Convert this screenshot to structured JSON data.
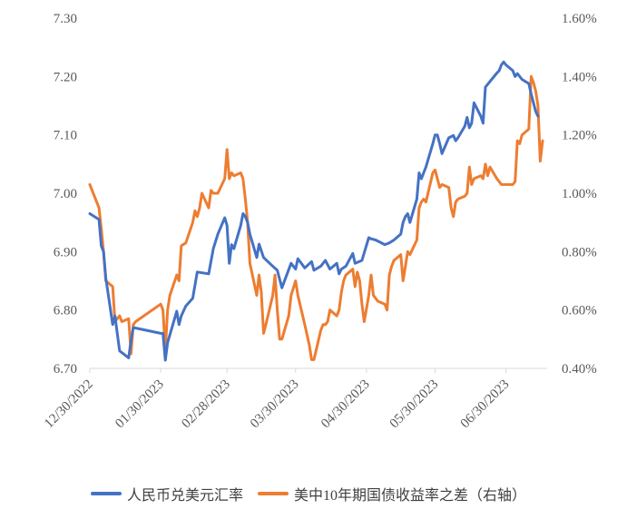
{
  "chart_data": {
    "type": "line",
    "title": "",
    "x_ticks": [
      "12/30/2022",
      "01/30/2023",
      "02/28/2023",
      "03/30/2023",
      "04/30/2023",
      "05/30/2023",
      "06/30/2023"
    ],
    "x_range": [
      "2022-12-30",
      "2023-07-18"
    ],
    "y_left": {
      "range": [
        6.7,
        7.3
      ],
      "ticks": [
        "6.70",
        "6.80",
        "6.90",
        "7.00",
        "7.10",
        "7.20",
        "7.30"
      ]
    },
    "y_right": {
      "range": [
        0.4,
        1.6
      ],
      "ticks": [
        "0.40%",
        "0.60%",
        "0.80%",
        "1.00%",
        "1.20%",
        "1.40%",
        "1.60%"
      ]
    },
    "grid": false,
    "legend_position": "bottom",
    "series": [
      {
        "name": "人民币兑美元汇率",
        "axis": "left",
        "color": "#4472C4",
        "points": [
          [
            "2022-12-30",
            6.965
          ],
          [
            "2023-01-03",
            6.955
          ],
          [
            "2023-01-04",
            6.91
          ],
          [
            "2023-01-05",
            6.9
          ],
          [
            "2023-01-06",
            6.855
          ],
          [
            "2023-01-09",
            6.775
          ],
          [
            "2023-01-10",
            6.79
          ],
          [
            "2023-01-12",
            6.73
          ],
          [
            "2023-01-16",
            6.718
          ],
          [
            "2023-01-17",
            6.748
          ],
          [
            "2023-01-18",
            6.77
          ],
          [
            "2023-01-30",
            6.76
          ],
          [
            "2023-01-31",
            6.76
          ],
          [
            "2023-02-01",
            6.714
          ],
          [
            "2023-02-02",
            6.744
          ],
          [
            "2023-02-06",
            6.798
          ],
          [
            "2023-02-07",
            6.775
          ],
          [
            "2023-02-08",
            6.79
          ],
          [
            "2023-02-10",
            6.807
          ],
          [
            "2023-02-13",
            6.82
          ],
          [
            "2023-02-15",
            6.865
          ],
          [
            "2023-02-20",
            6.862
          ],
          [
            "2023-02-22",
            6.905
          ],
          [
            "2023-02-24",
            6.93
          ],
          [
            "2023-02-27",
            6.958
          ],
          [
            "2023-02-28",
            6.945
          ],
          [
            "2023-03-01",
            6.88
          ],
          [
            "2023-03-02",
            6.912
          ],
          [
            "2023-03-03",
            6.905
          ],
          [
            "2023-03-06",
            6.945
          ],
          [
            "2023-03-07",
            6.965
          ],
          [
            "2023-03-08",
            6.96
          ],
          [
            "2023-03-09",
            6.95
          ],
          [
            "2023-03-10",
            6.93
          ],
          [
            "2023-03-13",
            6.89
          ],
          [
            "2023-03-14",
            6.913
          ],
          [
            "2023-03-16",
            6.89
          ],
          [
            "2023-03-20",
            6.875
          ],
          [
            "2023-03-22",
            6.868
          ],
          [
            "2023-03-24",
            6.838
          ],
          [
            "2023-03-28",
            6.88
          ],
          [
            "2023-03-30",
            6.87
          ],
          [
            "2023-03-31",
            6.888
          ],
          [
            "2023-04-03",
            6.872
          ],
          [
            "2023-04-06",
            6.883
          ],
          [
            "2023-04-07",
            6.868
          ],
          [
            "2023-04-10",
            6.875
          ],
          [
            "2023-04-12",
            6.885
          ],
          [
            "2023-04-14",
            6.87
          ],
          [
            "2023-04-17",
            6.88
          ],
          [
            "2023-04-18",
            6.862
          ],
          [
            "2023-04-19",
            6.87
          ],
          [
            "2023-04-21",
            6.875
          ],
          [
            "2023-04-24",
            6.897
          ],
          [
            "2023-04-25",
            6.88
          ],
          [
            "2023-04-28",
            6.885
          ],
          [
            "2023-05-01",
            6.924
          ],
          [
            "2023-05-02",
            6.922
          ],
          [
            "2023-05-04",
            6.92
          ],
          [
            "2023-05-08",
            6.912
          ],
          [
            "2023-05-10",
            6.915
          ],
          [
            "2023-05-12",
            6.92
          ],
          [
            "2023-05-15",
            6.93
          ],
          [
            "2023-05-16",
            6.95
          ],
          [
            "2023-05-17",
            6.96
          ],
          [
            "2023-05-18",
            6.965
          ],
          [
            "2023-05-19",
            6.95
          ],
          [
            "2023-05-22",
            6.99
          ],
          [
            "2023-05-23",
            7.035
          ],
          [
            "2023-05-24",
            7.025
          ],
          [
            "2023-05-25",
            7.035
          ],
          [
            "2023-05-26",
            7.045
          ],
          [
            "2023-05-29",
            7.085
          ],
          [
            "2023-05-30",
            7.1
          ],
          [
            "2023-05-31",
            7.1
          ],
          [
            "2023-06-01",
            7.085
          ],
          [
            "2023-06-02",
            7.068
          ],
          [
            "2023-06-05",
            7.095
          ],
          [
            "2023-06-06",
            7.097
          ],
          [
            "2023-06-07",
            7.099
          ],
          [
            "2023-06-08",
            7.09
          ],
          [
            "2023-06-09",
            7.095
          ],
          [
            "2023-06-12",
            7.115
          ],
          [
            "2023-06-13",
            7.13
          ],
          [
            "2023-06-14",
            7.112
          ],
          [
            "2023-06-15",
            7.12
          ],
          [
            "2023-06-16",
            7.155
          ],
          [
            "2023-06-19",
            7.132
          ],
          [
            "2023-06-20",
            7.12
          ],
          [
            "2023-06-21",
            7.182
          ],
          [
            "2023-06-26",
            7.206
          ],
          [
            "2023-06-27",
            7.21
          ],
          [
            "2023-06-28",
            7.22
          ],
          [
            "2023-06-29",
            7.225
          ],
          [
            "2023-06-30",
            7.22
          ],
          [
            "2023-07-03",
            7.21
          ],
          [
            "2023-07-04",
            7.2
          ],
          [
            "2023-07-05",
            7.205
          ],
          [
            "2023-07-06",
            7.2
          ],
          [
            "2023-07-07",
            7.195
          ],
          [
            "2023-07-10",
            7.188
          ],
          [
            "2023-07-11",
            7.17
          ],
          [
            "2023-07-12",
            7.155
          ],
          [
            "2023-07-13",
            7.14
          ],
          [
            "2023-07-14",
            7.132
          ]
        ]
      },
      {
        "name": "美中10年期国债收益率之差（右轴）",
        "axis": "right",
        "color": "#ED7D31",
        "points": [
          [
            "2022-12-30",
            1.03
          ],
          [
            "2023-01-03",
            0.95
          ],
          [
            "2023-01-04",
            0.88
          ],
          [
            "2023-01-05",
            0.8
          ],
          [
            "2023-01-06",
            0.7
          ],
          [
            "2023-01-09",
            0.68
          ],
          [
            "2023-01-10",
            0.56
          ],
          [
            "2023-01-11",
            0.57
          ],
          [
            "2023-01-12",
            0.58
          ],
          [
            "2023-01-13",
            0.56
          ],
          [
            "2023-01-16",
            0.57
          ],
          [
            "2023-01-17",
            0.45
          ],
          [
            "2023-01-18",
            0.55
          ],
          [
            "2023-01-19",
            0.56
          ],
          [
            "2023-01-30",
            0.62
          ],
          [
            "2023-01-31",
            0.6
          ],
          [
            "2023-02-01",
            0.46
          ],
          [
            "2023-02-02",
            0.6
          ],
          [
            "2023-02-03",
            0.65
          ],
          [
            "2023-02-06",
            0.72
          ],
          [
            "2023-02-07",
            0.7
          ],
          [
            "2023-02-08",
            0.82
          ],
          [
            "2023-02-10",
            0.83
          ],
          [
            "2023-02-13",
            0.9
          ],
          [
            "2023-02-14",
            0.94
          ],
          [
            "2023-02-15",
            0.92
          ],
          [
            "2023-02-16",
            0.95
          ],
          [
            "2023-02-17",
            1.0
          ],
          [
            "2023-02-20",
            0.95
          ],
          [
            "2023-02-21",
            1.01
          ],
          [
            "2023-02-22",
            1.0
          ],
          [
            "2023-02-24",
            1.0
          ],
          [
            "2023-02-27",
            1.05
          ],
          [
            "2023-02-28",
            1.15
          ],
          [
            "2023-03-01",
            1.05
          ],
          [
            "2023-03-02",
            1.07
          ],
          [
            "2023-03-03",
            1.06
          ],
          [
            "2023-03-06",
            1.07
          ],
          [
            "2023-03-07",
            1.05
          ],
          [
            "2023-03-08",
            0.98
          ],
          [
            "2023-03-09",
            0.9
          ],
          [
            "2023-03-10",
            0.76
          ],
          [
            "2023-03-13",
            0.65
          ],
          [
            "2023-03-14",
            0.72
          ],
          [
            "2023-03-15",
            0.66
          ],
          [
            "2023-03-16",
            0.52
          ],
          [
            "2023-03-17",
            0.55
          ],
          [
            "2023-03-20",
            0.65
          ],
          [
            "2023-03-21",
            0.72
          ],
          [
            "2023-03-22",
            0.6
          ],
          [
            "2023-03-23",
            0.5
          ],
          [
            "2023-03-24",
            0.5
          ],
          [
            "2023-03-27",
            0.58
          ],
          [
            "2023-03-28",
            0.65
          ],
          [
            "2023-03-30",
            0.7
          ],
          [
            "2023-03-31",
            0.65
          ],
          [
            "2023-04-03",
            0.55
          ],
          [
            "2023-04-05",
            0.48
          ],
          [
            "2023-04-06",
            0.43
          ],
          [
            "2023-04-07",
            0.43
          ],
          [
            "2023-04-10",
            0.53
          ],
          [
            "2023-04-11",
            0.55
          ],
          [
            "2023-04-12",
            0.55
          ],
          [
            "2023-04-13",
            0.56
          ],
          [
            "2023-04-14",
            0.6
          ],
          [
            "2023-04-17",
            0.58
          ],
          [
            "2023-04-18",
            0.6
          ],
          [
            "2023-04-19",
            0.66
          ],
          [
            "2023-04-20",
            0.7
          ],
          [
            "2023-04-21",
            0.72
          ],
          [
            "2023-04-24",
            0.74
          ],
          [
            "2023-04-25",
            0.68
          ],
          [
            "2023-04-26",
            0.73
          ],
          [
            "2023-04-27",
            0.7
          ],
          [
            "2023-04-28",
            0.62
          ],
          [
            "2023-04-29",
            0.56
          ],
          [
            "2023-05-01",
            0.65
          ],
          [
            "2023-05-02",
            0.72
          ],
          [
            "2023-05-03",
            0.65
          ],
          [
            "2023-05-04",
            0.64
          ],
          [
            "2023-05-05",
            0.63
          ],
          [
            "2023-05-08",
            0.62
          ],
          [
            "2023-05-09",
            0.6
          ],
          [
            "2023-05-10",
            0.72
          ],
          [
            "2023-05-11",
            0.75
          ],
          [
            "2023-05-12",
            0.77
          ],
          [
            "2023-05-15",
            0.79
          ],
          [
            "2023-05-16",
            0.7
          ],
          [
            "2023-05-17",
            0.75
          ],
          [
            "2023-05-18",
            0.8
          ],
          [
            "2023-05-19",
            0.79
          ],
          [
            "2023-05-22",
            0.84
          ],
          [
            "2023-05-23",
            0.95
          ],
          [
            "2023-05-24",
            0.97
          ],
          [
            "2023-05-25",
            0.98
          ],
          [
            "2023-05-26",
            0.97
          ],
          [
            "2023-05-29",
            1.07
          ],
          [
            "2023-05-30",
            1.08
          ],
          [
            "2023-05-31",
            1.05
          ],
          [
            "2023-06-01",
            1.02
          ],
          [
            "2023-06-02",
            1.03
          ],
          [
            "2023-06-05",
            1.02
          ],
          [
            "2023-06-06",
            0.95
          ],
          [
            "2023-06-07",
            0.92
          ],
          [
            "2023-06-08",
            0.97
          ],
          [
            "2023-06-09",
            0.98
          ],
          [
            "2023-06-12",
            0.99
          ],
          [
            "2023-06-13",
            1.0
          ],
          [
            "2023-06-14",
            1.09
          ],
          [
            "2023-06-15",
            1.03
          ],
          [
            "2023-06-16",
            1.05
          ],
          [
            "2023-06-19",
            1.06
          ],
          [
            "2023-06-20",
            1.05
          ],
          [
            "2023-06-21",
            1.1
          ],
          [
            "2023-06-22",
            1.06
          ],
          [
            "2023-06-23",
            1.09
          ],
          [
            "2023-06-26",
            1.05
          ],
          [
            "2023-06-27",
            1.04
          ],
          [
            "2023-06-28",
            1.03
          ],
          [
            "2023-06-29",
            1.03
          ],
          [
            "2023-07-03",
            1.03
          ],
          [
            "2023-07-04",
            1.04
          ],
          [
            "2023-07-05",
            1.18
          ],
          [
            "2023-07-06",
            1.17
          ],
          [
            "2023-07-07",
            1.2
          ],
          [
            "2023-07-10",
            1.22
          ],
          [
            "2023-07-11",
            1.4
          ],
          [
            "2023-07-12",
            1.38
          ],
          [
            "2023-07-13",
            1.35
          ],
          [
            "2023-07-14",
            1.3
          ],
          [
            "2023-07-15",
            1.11
          ],
          [
            "2023-07-16",
            1.18
          ]
        ]
      }
    ]
  }
}
